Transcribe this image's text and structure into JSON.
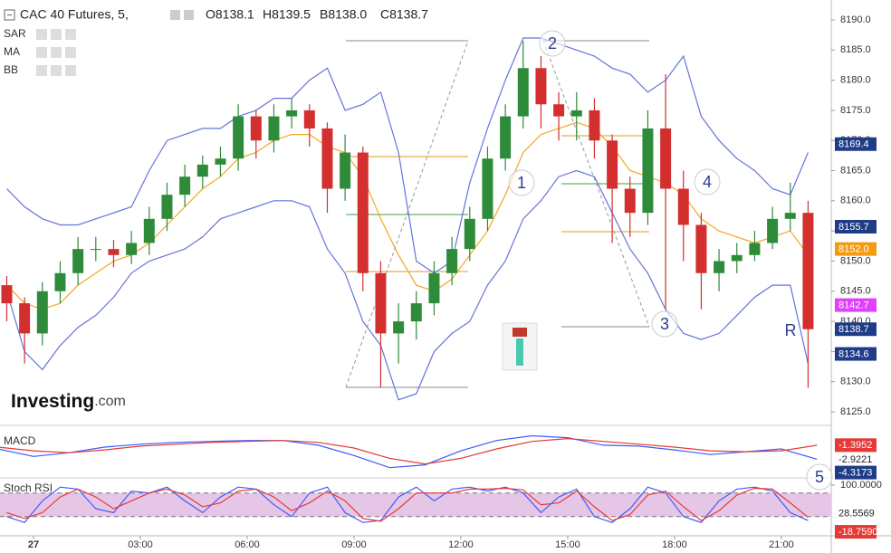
{
  "chart_data": [
    {
      "type": "candlestick",
      "title": "CAC 40 Futures, 5,",
      "ohlc_labels": [
        "O8138.1",
        "H8139.5",
        "B8138.0",
        "C8138.7"
      ],
      "indicators": [
        "SAR",
        "MA",
        "BB"
      ],
      "watermark": [
        "Investing",
        ".com"
      ],
      "annotations": [
        "1",
        "2",
        "3",
        "4",
        "R",
        "5"
      ],
      "up_color": "#2e8b3a",
      "down_color": "#d32f2f",
      "xlim": [
        -0.94,
        22.4
      ],
      "xticks": [
        {
          "value": 0,
          "label": "27"
        },
        {
          "value": 3,
          "label": "03:00"
        },
        {
          "value": 6,
          "label": "06:00"
        },
        {
          "value": 9,
          "label": "09:00"
        },
        {
          "value": 12,
          "label": "12:00"
        },
        {
          "value": 15,
          "label": "15:00"
        },
        {
          "value": 18,
          "label": "18:00"
        },
        {
          "value": 21,
          "label": "21:00"
        }
      ],
      "ylim": [
        8123.5,
        8193.3
      ],
      "yticks": [
        {
          "value": 8125,
          "label": "8125.0"
        },
        {
          "value": 8130,
          "label": "8130.0"
        },
        {
          "value": 8135,
          "label": "8135.0"
        },
        {
          "value": 8140,
          "label": "8140.0"
        },
        {
          "value": 8145,
          "label": "8145.0"
        },
        {
          "value": 8150,
          "label": "8150.0"
        },
        {
          "value": 8155,
          "label": "8155.0"
        },
        {
          "value": 8160,
          "label": "8160.0"
        },
        {
          "value": 8165,
          "label": "8165.0"
        },
        {
          "value": 8170,
          "label": "8170.0"
        },
        {
          "value": 8175,
          "label": "8175.0"
        },
        {
          "value": 8180,
          "label": "8180.0"
        },
        {
          "value": 8185,
          "label": "8185.0"
        },
        {
          "value": 8190,
          "label": "8190.0"
        }
      ],
      "x": [
        -0.75,
        -0.25,
        0.25,
        0.75,
        1.25,
        1.75,
        2.25,
        2.75,
        3.25,
        3.75,
        4.25,
        4.75,
        5.25,
        5.75,
        6.25,
        6.75,
        7.25,
        7.75,
        8.25,
        8.75,
        9.25,
        9.75,
        10.25,
        10.75,
        11.25,
        11.75,
        12.25,
        12.75,
        13.25,
        13.75,
        14.25,
        14.75,
        15.25,
        15.75,
        16.25,
        16.75,
        17.25,
        17.75,
        18.25,
        18.75,
        19.25,
        19.75,
        20.25,
        20.75,
        21.25,
        21.75
      ],
      "open": [
        8146,
        8143,
        8138,
        8145,
        8148,
        8152,
        8152,
        8151,
        8153,
        8157,
        8161,
        8164,
        8166,
        8167,
        8174,
        8170,
        8174,
        8175,
        8172,
        8162,
        8168,
        8148,
        8138,
        8140,
        8143,
        8148,
        8152,
        8157,
        8167,
        8174,
        8182,
        8176,
        8174,
        8175,
        8170,
        8162,
        8158,
        8172,
        8162,
        8156,
        8148,
        8150,
        8151,
        8153,
        8157,
        8158
      ],
      "high": [
        8147.5,
        8144,
        8146.5,
        8150,
        8154,
        8154,
        8153.5,
        8155,
        8159,
        8163,
        8166,
        8167.5,
        8169,
        8176,
        8175,
        8176,
        8177,
        8176,
        8173,
        8171,
        8169,
        8150,
        8143,
        8145,
        8150,
        8154,
        8159,
        8169,
        8176,
        8186.5,
        8184,
        8178,
        8178,
        8177,
        8171,
        8164,
        8175,
        8181,
        8165,
        8158,
        8152,
        8153,
        8155,
        8159,
        8163,
        8160
      ],
      "low": [
        8140,
        8133,
        8136,
        8143,
        8146,
        8150,
        8149,
        8149.5,
        8151,
        8155,
        8159,
        8162,
        8164,
        8165,
        8167,
        8168,
        8172,
        8169,
        8158,
        8160,
        8145,
        8129,
        8133,
        8137,
        8141,
        8146,
        8150,
        8155,
        8165,
        8172,
        8172,
        8170,
        8170,
        8167,
        8153,
        8154,
        8156,
        8142,
        8150,
        8142,
        8145,
        8148,
        8150,
        8152,
        8155,
        8129
      ],
      "close": [
        8143,
        8138,
        8145,
        8148,
        8152,
        8152,
        8151,
        8153,
        8157,
        8161,
        8164,
        8166,
        8167,
        8174,
        8170,
        8174,
        8175,
        8172,
        8162,
        8168,
        8148,
        8138,
        8140,
        8143,
        8148,
        8152,
        8157,
        8167,
        8174,
        8182,
        8176,
        8174,
        8175,
        8170,
        8162,
        8158,
        8172,
        8162,
        8156,
        8148,
        8150,
        8151,
        8153,
        8157,
        8158,
        8138.7
      ],
      "series": [
        {
          "color": "#6673dd",
          "values": [
            8162,
            8159,
            8157,
            8156,
            8156,
            8157,
            8158,
            8159,
            8165,
            8170,
            8171,
            8172,
            8172,
            8174,
            8175,
            8177,
            8177,
            8180,
            8182,
            8175,
            8176,
            8178,
            8168,
            8150,
            8148,
            8150,
            8163,
            8172,
            8180,
            8187,
            8187,
            8186,
            8185,
            8184,
            8182,
            8181,
            8178,
            8180,
            8184,
            8174,
            8170,
            8167,
            8165,
            8162,
            8161,
            8168
          ]
        },
        {
          "color": "#6673dd",
          "values": [
            8145,
            8135,
            8132,
            8136,
            8139,
            8141,
            8144,
            8148,
            8150,
            8151,
            8152,
            8154,
            8157,
            8158,
            8159,
            8160,
            8160,
            8159,
            8152,
            8148,
            8140,
            8136,
            8127,
            8128,
            8135,
            8138,
            8140,
            8146,
            8150,
            8157,
            8160,
            8164,
            8165,
            8164,
            8158,
            8152,
            8148,
            8142,
            8138,
            8137,
            8138,
            8141,
            8144,
            8146,
            8146,
            8133
          ]
        },
        {
          "color": "#f5a623",
          "values": [
            8146,
            8143,
            8142,
            8143,
            8146,
            8148,
            8150,
            8151,
            8153,
            8156,
            8159,
            8162,
            8164,
            8167,
            8168,
            8170,
            8171,
            8171,
            8169,
            8168,
            8164,
            8157,
            8151,
            8146,
            8145,
            8147,
            8151,
            8155,
            8161,
            8168,
            8171,
            8172,
            8173,
            8172,
            8169,
            8165,
            8164,
            8163,
            8161,
            8157,
            8155,
            8154,
            8153,
            8154,
            8155,
            8151
          ]
        }
      ],
      "markers": [
        {
          "value": 8169.4,
          "color": "#1f3c88"
        },
        {
          "value": 8155.7,
          "color": "#1f3c88"
        },
        {
          "value": 8152,
          "label": "8152.0",
          "color": "#f39c12"
        },
        {
          "value": 8142.7,
          "color": "#e040fb"
        },
        {
          "value": 8138.7,
          "color": "#1f3c88"
        },
        {
          "value": 8134.6,
          "color": "#1f3c88"
        }
      ]
    },
    {
      "type": "line",
      "title": "MACD",
      "ylim": [
        -4.79,
        -0.06
      ],
      "x": [
        -1,
        0,
        1,
        2,
        3,
        4,
        5,
        6,
        7,
        8,
        9,
        10,
        11,
        12,
        13,
        14,
        15,
        16,
        17,
        18,
        19,
        20,
        21,
        22
      ],
      "series": [
        {
          "color": "#3d5afe",
          "values": [
            -1.8,
            -2.6,
            -2.2,
            -1.6,
            -1.3,
            -1.1,
            -1.0,
            -0.9,
            -0.9,
            -1.4,
            -2.5,
            -3.8,
            -3.5,
            -2.0,
            -0.9,
            -0.4,
            -0.6,
            -1.4,
            -1.5,
            -1.9,
            -2.4,
            -2.1,
            -1.8,
            -2.9
          ]
        },
        {
          "color": "#e53935",
          "values": [
            -1.6,
            -2.0,
            -2.2,
            -1.9,
            -1.5,
            -1.3,
            -1.1,
            -1.0,
            -0.9,
            -1.1,
            -1.7,
            -2.8,
            -3.4,
            -2.8,
            -1.8,
            -1.0,
            -0.7,
            -1.0,
            -1.3,
            -1.6,
            -2.0,
            -2.1,
            -2.0,
            -1.4
          ]
        }
      ],
      "markers": [
        {
          "value": -1.3952,
          "color": "#e53935"
        },
        {
          "value": -2.9221,
          "color": "#ffffff"
        },
        {
          "value": -4.3173,
          "color": "#1f3c88"
        }
      ]
    },
    {
      "type": "line",
      "title": "Stoch RSI",
      "ylim": [
        -29,
        114
      ],
      "yticks": [
        {
          "value": 100,
          "label": "100.0000"
        }
      ],
      "levels": [
        80,
        20
      ],
      "x": [
        -0.75,
        -0.25,
        0.25,
        0.75,
        1.25,
        1.75,
        2.25,
        2.75,
        3.25,
        3.75,
        4.25,
        4.75,
        5.25,
        5.75,
        6.25,
        6.75,
        7.25,
        7.75,
        8.25,
        8.75,
        9.25,
        9.75,
        10.25,
        10.75,
        11.25,
        11.75,
        12.25,
        12.75,
        13.25,
        13.75,
        14.25,
        14.75,
        15.25,
        15.75,
        16.25,
        16.75,
        17.25,
        17.75,
        18.25,
        18.75,
        19.25,
        19.75,
        20.25,
        20.75,
        21.25,
        21.75
      ],
      "series": [
        {
          "color": "#3d5afe",
          "values": [
            20,
            5,
            60,
            95,
            90,
            40,
            30,
            85,
            80,
            95,
            60,
            30,
            70,
            95,
            90,
            50,
            20,
            80,
            95,
            30,
            5,
            10,
            70,
            95,
            60,
            90,
            95,
            85,
            95,
            80,
            30,
            70,
            90,
            20,
            5,
            40,
            95,
            80,
            20,
            5,
            60,
            90,
            95,
            85,
            30,
            10
          ]
        },
        {
          "color": "#e53935",
          "values": [
            30,
            15,
            30,
            70,
            90,
            70,
            40,
            60,
            80,
            90,
            75,
            45,
            55,
            85,
            90,
            70,
            35,
            55,
            85,
            60,
            15,
            8,
            40,
            80,
            80,
            80,
            90,
            90,
            92,
            88,
            50,
            55,
            85,
            45,
            10,
            25,
            75,
            85,
            45,
            10,
            35,
            75,
            92,
            90,
            55,
            18
          ]
        }
      ],
      "markers": [
        {
          "value": 28.5569,
          "color": "#ffffff"
        },
        {
          "value": -18.759,
          "label": "-18.7590",
          "color": "#e53935"
        }
      ]
    }
  ]
}
